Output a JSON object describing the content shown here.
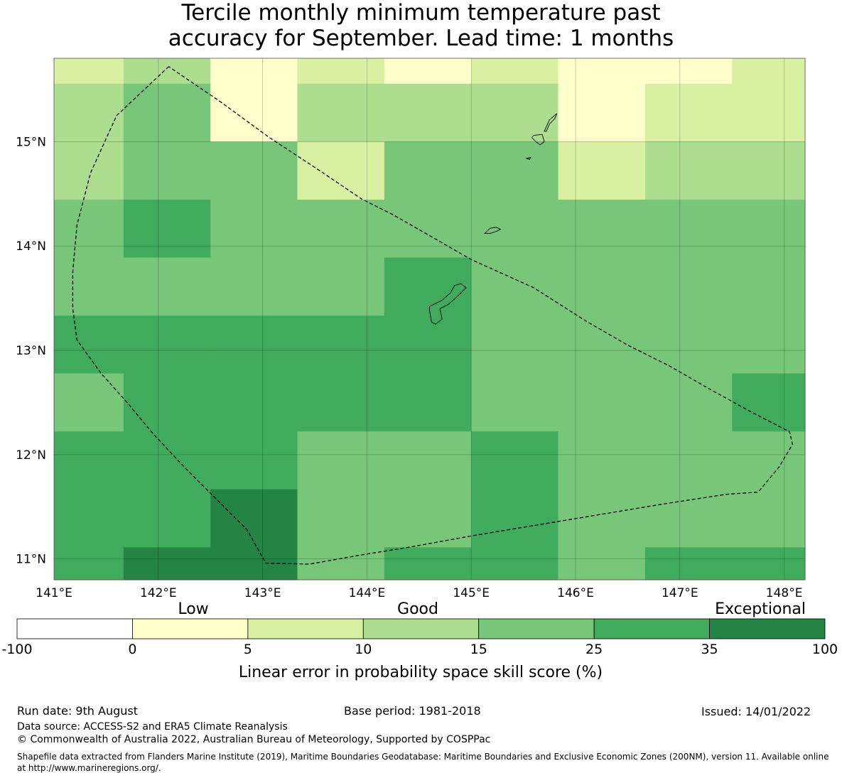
{
  "title": {
    "line1": "Tercile monthly minimum temperature past",
    "line2": "accuracy for September. Lead time: 1 months"
  },
  "map": {
    "lon_range": [
      141.0,
      148.2
    ],
    "lat_range": [
      10.8,
      15.8
    ],
    "lon_ticks": [
      {
        "value": 141,
        "label": "141°E"
      },
      {
        "value": 142,
        "label": "142°E"
      },
      {
        "value": 143,
        "label": "143°E"
      },
      {
        "value": 144,
        "label": "144°E"
      },
      {
        "value": 145,
        "label": "145°E"
      },
      {
        "value": 146,
        "label": "146°E"
      },
      {
        "value": 147,
        "label": "147°E"
      },
      {
        "value": 148,
        "label": "148°E"
      }
    ],
    "lat_ticks": [
      {
        "value": 11,
        "label": "11°N"
      },
      {
        "value": 12,
        "label": "12°N"
      },
      {
        "value": 13,
        "label": "13°N"
      },
      {
        "value": 14,
        "label": "14°N"
      },
      {
        "value": 15,
        "label": "15°N"
      }
    ],
    "cell_lon_edges": [
      141.0,
      141.667,
      142.5,
      143.333,
      144.167,
      145.0,
      145.833,
      146.667,
      147.5,
      148.2
    ],
    "cell_lat_edges": [
      15.8,
      15.556,
      15.0,
      14.444,
      13.889,
      13.333,
      12.778,
      12.222,
      11.667,
      11.111,
      10.8
    ],
    "skill_class_grid": [
      [
        2,
        3,
        1,
        2,
        1,
        2,
        1,
        1,
        2
      ],
      [
        3,
        4,
        1,
        3,
        3,
        3,
        1,
        2,
        2
      ],
      [
        3,
        4,
        4,
        2,
        4,
        4,
        2,
        3,
        3
      ],
      [
        4,
        5,
        4,
        4,
        4,
        4,
        4,
        4,
        4
      ],
      [
        4,
        4,
        4,
        4,
        5,
        4,
        4,
        4,
        4
      ],
      [
        5,
        5,
        5,
        5,
        5,
        4,
        4,
        4,
        4
      ],
      [
        4,
        5,
        5,
        5,
        5,
        4,
        4,
        4,
        5
      ],
      [
        5,
        5,
        5,
        4,
        4,
        5,
        4,
        4,
        4
      ],
      [
        5,
        5,
        6,
        4,
        4,
        5,
        4,
        4,
        4
      ],
      [
        5,
        6,
        6,
        4,
        5,
        5,
        4,
        5,
        5
      ]
    ],
    "eez_boundary": [
      [
        142.1,
        15.72
      ],
      [
        141.6,
        15.25
      ],
      [
        141.35,
        14.7
      ],
      [
        141.22,
        14.2
      ],
      [
        141.18,
        13.75
      ],
      [
        141.18,
        13.4
      ],
      [
        141.22,
        13.1
      ],
      [
        141.45,
        12.78
      ],
      [
        141.7,
        12.5
      ],
      [
        141.95,
        12.2
      ],
      [
        142.25,
        11.88
      ],
      [
        142.55,
        11.58
      ],
      [
        142.85,
        11.28
      ],
      [
        143.03,
        10.96
      ],
      [
        143.45,
        10.95
      ],
      [
        143.9,
        11.03
      ],
      [
        144.45,
        11.12
      ],
      [
        145.0,
        11.22
      ],
      [
        145.6,
        11.32
      ],
      [
        146.2,
        11.42
      ],
      [
        146.8,
        11.52
      ],
      [
        147.45,
        11.62
      ],
      [
        147.75,
        11.64
      ],
      [
        147.95,
        11.88
      ],
      [
        148.08,
        12.1
      ],
      [
        148.05,
        12.22
      ],
      [
        147.7,
        12.4
      ],
      [
        147.3,
        12.62
      ],
      [
        146.9,
        12.85
      ],
      [
        146.5,
        13.05
      ],
      [
        146.1,
        13.28
      ],
      [
        145.6,
        13.6
      ],
      [
        145.0,
        13.87
      ],
      [
        144.6,
        14.1
      ],
      [
        144.25,
        14.3
      ],
      [
        143.95,
        14.45
      ],
      [
        143.55,
        14.72
      ],
      [
        143.05,
        15.05
      ],
      [
        142.6,
        15.38
      ],
      [
        142.1,
        15.72
      ]
    ],
    "islands": [
      [
        [
          144.95,
          13.6
        ],
        [
          144.85,
          13.5
        ],
        [
          144.78,
          13.44
        ],
        [
          144.7,
          13.4
        ],
        [
          144.72,
          13.3
        ],
        [
          144.66,
          13.25
        ],
        [
          144.62,
          13.27
        ],
        [
          144.6,
          13.38
        ],
        [
          144.6,
          13.42
        ],
        [
          144.66,
          13.45
        ],
        [
          144.72,
          13.48
        ],
        [
          144.8,
          13.55
        ],
        [
          144.84,
          13.62
        ],
        [
          144.9,
          13.64
        ]
      ],
      [
        [
          145.13,
          14.12
        ],
        [
          145.18,
          14.17
        ],
        [
          145.24,
          14.18
        ],
        [
          145.28,
          14.16
        ],
        [
          145.24,
          14.14
        ],
        [
          145.18,
          14.12
        ]
      ],
      [
        [
          145.6,
          15.06
        ],
        [
          145.68,
          15.07
        ],
        [
          145.7,
          15.0
        ],
        [
          145.66,
          14.97
        ],
        [
          145.62,
          15.0
        ],
        [
          145.58,
          15.04
        ]
      ],
      [
        [
          145.7,
          15.1
        ],
        [
          145.75,
          15.21
        ],
        [
          145.82,
          15.27
        ],
        [
          145.8,
          15.22
        ],
        [
          145.75,
          15.17
        ],
        [
          145.72,
          15.1
        ]
      ],
      [
        [
          145.53,
          14.84
        ],
        [
          145.57,
          14.85
        ],
        [
          145.56,
          14.83
        ]
      ]
    ]
  },
  "legend": {
    "categories": {
      "low": "Low",
      "good": "Good",
      "exceptional": "Exceptional"
    },
    "bins": [
      {
        "from": -100,
        "to": 0,
        "color": "#ffffff"
      },
      {
        "from": 0,
        "to": 5,
        "color": "#ffffcc"
      },
      {
        "from": 5,
        "to": 10,
        "color": "#d9f0a3"
      },
      {
        "from": 10,
        "to": 15,
        "color": "#addd8e"
      },
      {
        "from": 15,
        "to": 25,
        "color": "#78c679"
      },
      {
        "from": 25,
        "to": 35,
        "color": "#41ab5d"
      },
      {
        "from": 35,
        "to": 100,
        "color": "#238443"
      }
    ],
    "tick_labels": [
      "-100",
      "0",
      "5",
      "10",
      "15",
      "25",
      "35",
      "100"
    ],
    "label": "Linear error in probability space skill score (%)"
  },
  "footer": {
    "run_date": "Run date: 9th August",
    "base_period": "Base period: 1981-2018",
    "issued": "Issued: 14/01/2022",
    "data_source": "Data source: ACCESS-S2 and ERA5 Climate Reanalysis",
    "copyright": "© Commonwealth of Australia 2022, Australian Bureau of Meteorology, Supported by COSPPac",
    "shapefile": "Shapefile data extracted from Flanders Marine Institute (2019), Maritime Boundaries Geodatabase: Maritime Boundaries and Exclusive Economic Zones (200NM), version 11. Available online at http://www.marineregions.org/."
  }
}
